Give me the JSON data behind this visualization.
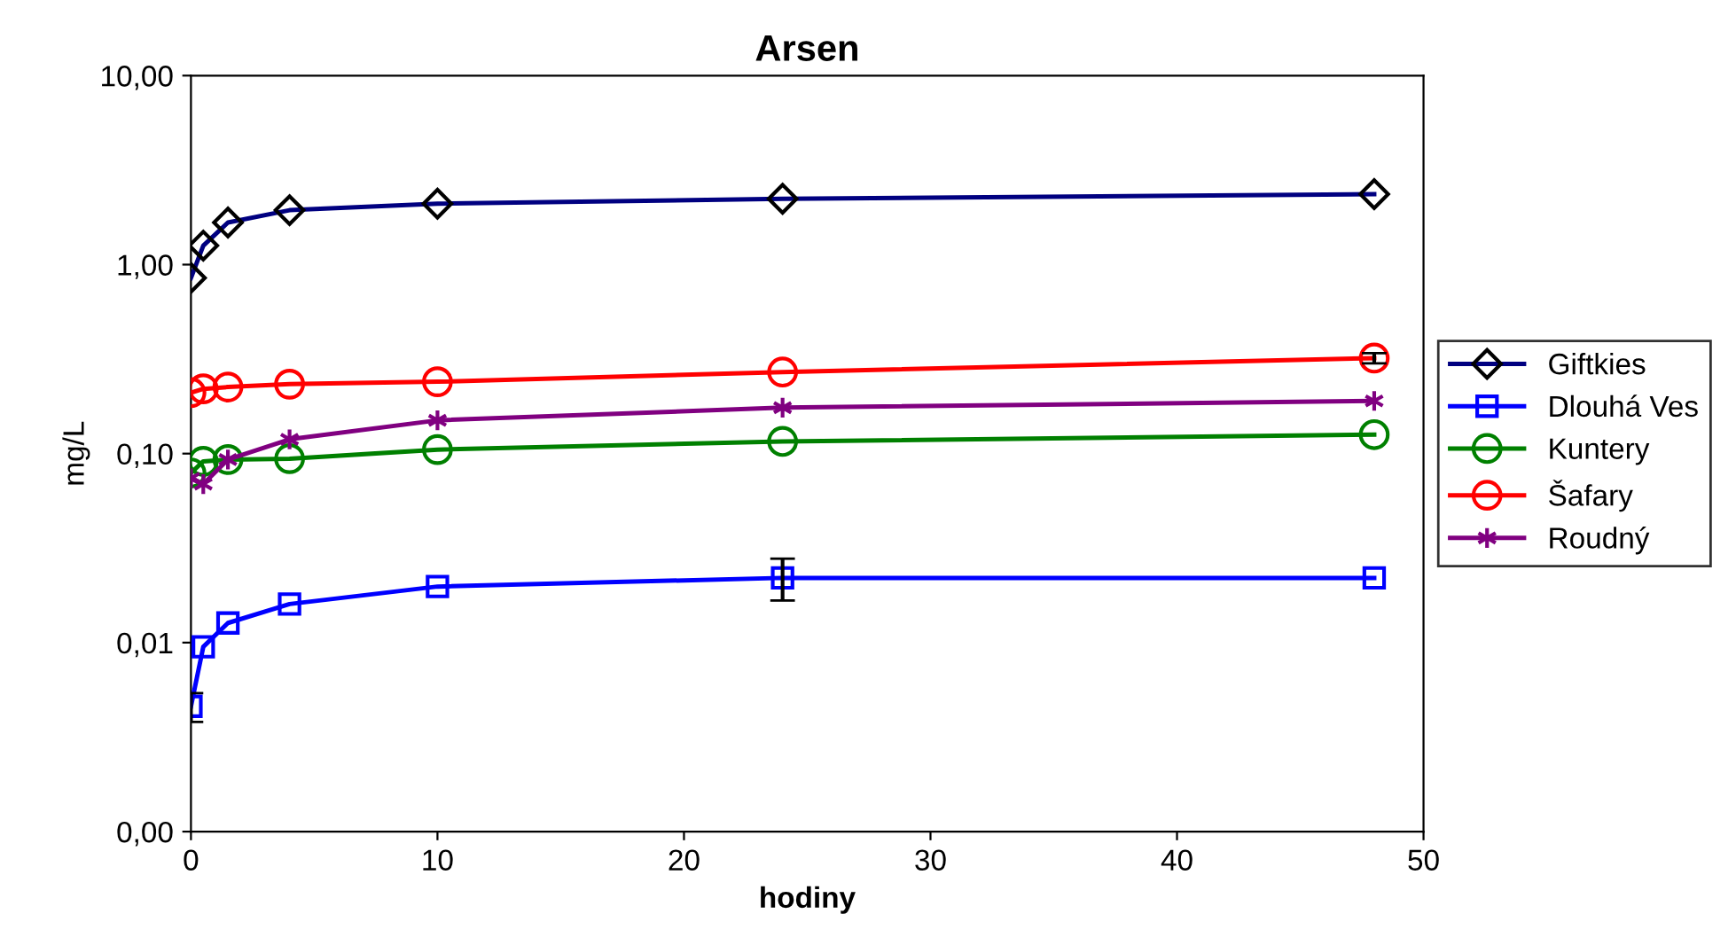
{
  "chart_data": {
    "type": "line",
    "title": "Arsen",
    "xlabel": "hodiny",
    "ylabel": "mg/L",
    "log": "y",
    "x": [
      0,
      0.5,
      1.5,
      4,
      10,
      24,
      48
    ],
    "xlim": [
      0,
      50
    ],
    "xticks": [
      0,
      10,
      20,
      30,
      40,
      50
    ],
    "ylim": [
      0.001,
      10
    ],
    "yticks": [
      {
        "value": 0.001,
        "label": "0,00"
      },
      {
        "value": 0.01,
        "label": "0,01"
      },
      {
        "value": 0.1,
        "label": "0,10"
      },
      {
        "value": 1,
        "label": "1,00"
      },
      {
        "value": 10,
        "label": "10,00"
      }
    ],
    "grid": false,
    "legend": "right",
    "line_style": "solid",
    "series": [
      {
        "name": "Giftkies",
        "color": "#000080",
        "marker": "diamond",
        "values": [
          0.85,
          1.26,
          1.67,
          1.94,
          2.1,
          2.23,
          2.36
        ]
      },
      {
        "name": "Dlouhá Ves",
        "color": "#0000ff",
        "marker": "square",
        "values": [
          0.0046,
          0.0095,
          0.0127,
          0.016,
          0.0198,
          0.022,
          0.022
        ],
        "errors": [
          [
            0.0038,
            0.0054
          ],
          null,
          null,
          null,
          null,
          [
            0.0167,
            0.0278
          ],
          null
        ]
      },
      {
        "name": "Kuntery",
        "color": "#008000",
        "marker": "circle",
        "values": [
          0.079,
          0.091,
          0.093,
          0.094,
          0.105,
          0.116,
          0.126
        ]
      },
      {
        "name": "Šafary",
        "color": "#ff0000",
        "marker": "circle",
        "values": [
          0.21,
          0.22,
          0.225,
          0.233,
          0.24,
          0.27,
          0.32
        ],
        "errors": [
          null,
          null,
          null,
          null,
          null,
          null,
          [
            0.3,
            0.34
          ]
        ]
      },
      {
        "name": "Roudný",
        "color": "#800080",
        "marker": "cross",
        "values": [
          0.074,
          0.069,
          0.093,
          0.119,
          0.15,
          0.175,
          0.19
        ]
      }
    ]
  }
}
